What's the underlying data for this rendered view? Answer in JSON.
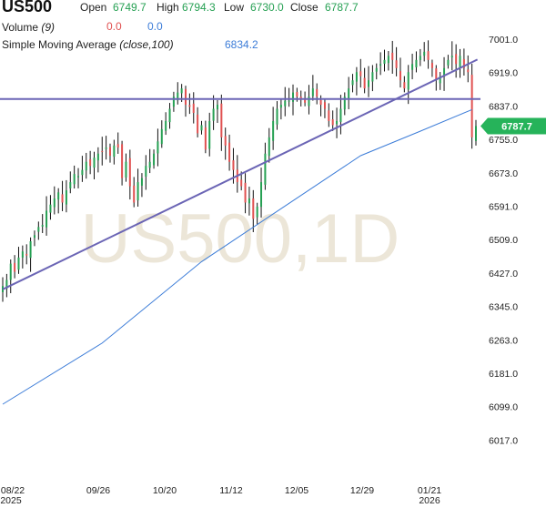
{
  "header": {
    "symbol": "US500",
    "open_label": "Open",
    "open_value": "6749.7",
    "high_label": "High",
    "high_value": "6794.3",
    "low_label": "Low",
    "low_value": "6730.0",
    "close_label": "Close",
    "close_value": "6787.7",
    "volume_label": "Volume",
    "volume_param": "(9)",
    "volume_value_1": "0.0",
    "volume_value_2": "0.0",
    "sma_label": "Simple Moving Average",
    "sma_param": "(close,100)",
    "sma_value": "6834.2"
  },
  "watermark": "US500,1D",
  "colors": {
    "up": "#26a053",
    "down": "#e05050",
    "candle_wick": "#111111",
    "sma": "#3d7dd8",
    "trendline": "#6b65b5",
    "last_price_tag": "#26b35a",
    "watermark": "#ece6d8"
  },
  "chart_data": {
    "type": "candlestick",
    "timeframe": "1D",
    "y_axis_ticks": [
      "7001.0",
      "6919.0",
      "6837.0",
      "6755.0",
      "6673.0",
      "6591.0",
      "6509.0",
      "6427.0",
      "6345.0",
      "6263.0",
      "6181.0",
      "6099.0",
      "6017.0"
    ],
    "ylim": [
      5980,
      7090
    ],
    "x_axis_ticks": [
      {
        "label": "08/22",
        "sub": "2025"
      },
      {
        "label": "09/26",
        "sub": ""
      },
      {
        "label": "10/20",
        "sub": ""
      },
      {
        "label": "11/12",
        "sub": ""
      },
      {
        "label": "12/05",
        "sub": ""
      },
      {
        "label": "12/29",
        "sub": ""
      },
      {
        "label": "01/21",
        "sub": "2026"
      }
    ],
    "last_price": "6787.7",
    "close_path": [
      6395,
      6410,
      6450,
      6430,
      6465,
      6480,
      6470,
      6505,
      6520,
      6540,
      6545,
      6580,
      6595,
      6610,
      6625,
      6600,
      6630,
      6650,
      6670,
      6665,
      6680,
      6700,
      6690,
      6710,
      6720,
      6725,
      6735,
      6715,
      6740,
      6735,
      6660,
      6700,
      6640,
      6600,
      6650,
      6660,
      6690,
      6700,
      6720,
      6750,
      6780,
      6800,
      6830,
      6860,
      6870,
      6880,
      6840,
      6835,
      6820,
      6770,
      6790,
      6730,
      6800,
      6830,
      6840,
      6760,
      6740,
      6700,
      6680,
      6650,
      6640,
      6600,
      6610,
      6560,
      6590,
      6650,
      6720,
      6760,
      6800,
      6830,
      6840,
      6850,
      6850,
      6870,
      6860,
      6855,
      6845,
      6860,
      6880,
      6860,
      6840,
      6830,
      6800,
      6790,
      6800,
      6830,
      6860,
      6880,
      6900,
      6920,
      6910,
      6880,
      6900,
      6920,
      6930,
      6940,
      6950,
      6960,
      6950,
      6930,
      6900,
      6880,
      6920,
      6940,
      6950,
      6960,
      6970,
      6950,
      6930,
      6900,
      6910,
      6930,
      6950,
      6960,
      6940,
      6960,
      6930,
      6920,
      6760,
      6787.7
    ],
    "sma100": {
      "start": 6105,
      "points": [
        [
          0,
          6105
        ],
        [
          25,
          6255
        ],
        [
          50,
          6455
        ],
        [
          70,
          6585
        ],
        [
          90,
          6715
        ],
        [
          105,
          6775
        ],
        [
          118,
          6828
        ]
      ]
    },
    "horizontal_level": 6854,
    "trendline": {
      "start": [
        0,
        6387
      ],
      "end": [
        118,
        6942
      ]
    }
  }
}
